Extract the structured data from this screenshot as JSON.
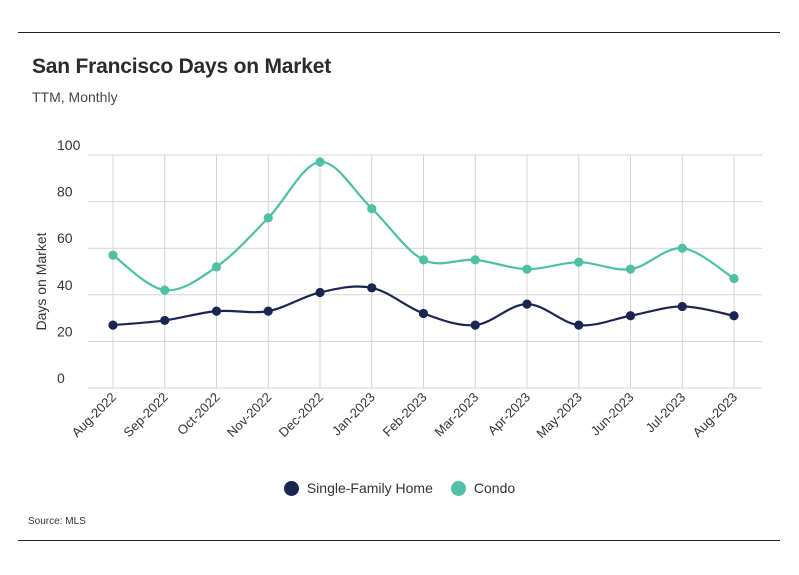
{
  "header": {
    "title": "San Francisco Days on Market",
    "subtitle": "TTM, Monthly"
  },
  "source": "Source:  MLS",
  "colors": {
    "single_family": "#1b2650",
    "condo": "#4fbfa5",
    "grid": "#d4d4d4",
    "text": "#333333"
  },
  "chart_data": {
    "type": "line",
    "categories": [
      "Aug-2022",
      "Sep-2022",
      "Oct-2022",
      "Nov-2022",
      "Dec-2022",
      "Jan-2023",
      "Feb-2023",
      "Mar-2023",
      "Apr-2023",
      "May-2023",
      "Jun-2023",
      "Jul-2023",
      "Aug-2023"
    ],
    "series": [
      {
        "name": "Single-Family Home",
        "color": "#1b2650",
        "values": [
          27,
          29,
          33,
          33,
          41,
          43,
          32,
          27,
          36,
          27,
          31,
          35,
          31
        ]
      },
      {
        "name": "Condo",
        "color": "#4fbfa5",
        "values": [
          57,
          42,
          52,
          73,
          97,
          77,
          55,
          55,
          51,
          54,
          51,
          60,
          47
        ]
      }
    ],
    "ylabel": "Days on Market",
    "xlabel": "",
    "yticks": [
      0,
      20,
      40,
      60,
      80,
      100
    ],
    "ylim": [
      0,
      100
    ],
    "grid": true,
    "legend_position": "bottom-center",
    "smooth": true
  }
}
